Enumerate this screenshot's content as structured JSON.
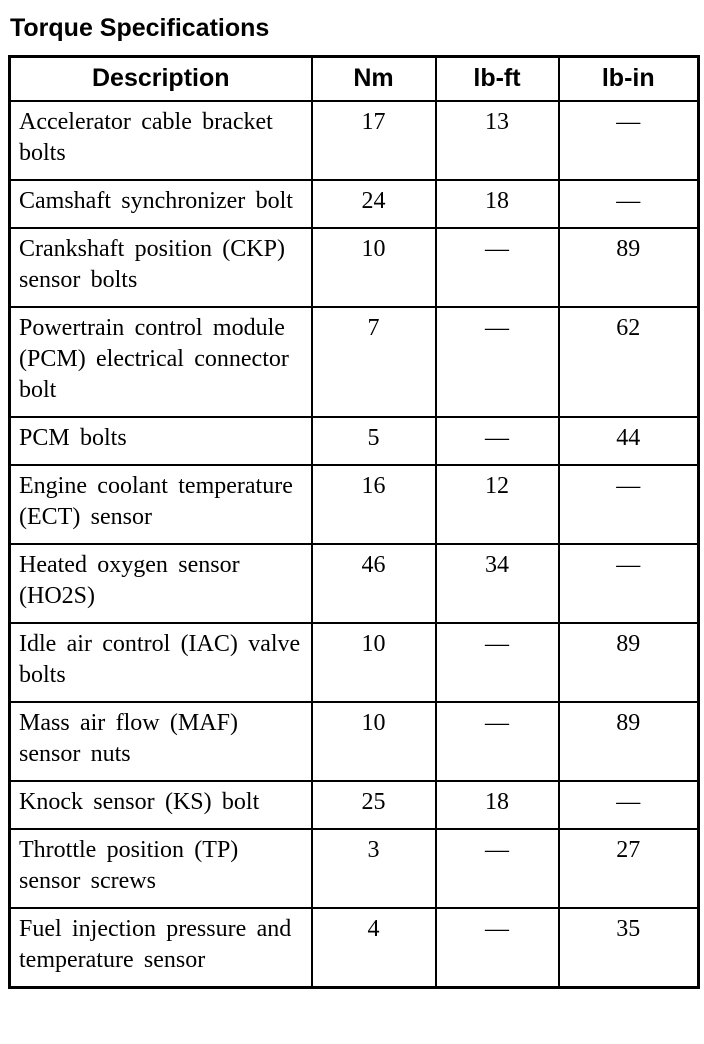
{
  "title": "Torque Specifications",
  "colors": {
    "text": "#000000",
    "border": "#000000",
    "background": "#ffffff"
  },
  "table": {
    "headers": {
      "description": "Description",
      "nm": "Nm",
      "lb_ft": "lb-ft",
      "lb_in": "lb-in"
    },
    "rows": [
      {
        "description": "Accelerator cable bracket bolts",
        "nm": "17",
        "lb_ft": "13",
        "lb_in": "—"
      },
      {
        "description": "Camshaft synchronizer bolt",
        "nm": "24",
        "lb_ft": "18",
        "lb_in": "—"
      },
      {
        "description": "Crankshaft position (CKP) sensor bolts",
        "nm": "10",
        "lb_ft": "—",
        "lb_in": "89"
      },
      {
        "description": "Powertrain control module (PCM) electrical connector bolt",
        "nm": "7",
        "lb_ft": "—",
        "lb_in": "62"
      },
      {
        "description": "PCM bolts",
        "nm": "5",
        "lb_ft": "—",
        "lb_in": "44"
      },
      {
        "description": "Engine coolant temperature (ECT) sensor",
        "nm": "16",
        "lb_ft": "12",
        "lb_in": "—"
      },
      {
        "description": "Heated oxygen sensor (HO2S)",
        "nm": "46",
        "lb_ft": "34",
        "lb_in": "—"
      },
      {
        "description": "Idle air control (IAC) valve bolts",
        "nm": "10",
        "lb_ft": "—",
        "lb_in": "89"
      },
      {
        "description": "Mass air flow (MAF) sensor nuts",
        "nm": "10",
        "lb_ft": "—",
        "lb_in": "89"
      },
      {
        "description": "Knock sensor (KS) bolt",
        "nm": "25",
        "lb_ft": "18",
        "lb_in": "—"
      },
      {
        "description": "Throttle position (TP) sensor screws",
        "nm": "3",
        "lb_ft": "—",
        "lb_in": "27"
      },
      {
        "description": "Fuel injection pressure and temperature sensor",
        "nm": "4",
        "lb_ft": "—",
        "lb_in": "35"
      }
    ]
  }
}
